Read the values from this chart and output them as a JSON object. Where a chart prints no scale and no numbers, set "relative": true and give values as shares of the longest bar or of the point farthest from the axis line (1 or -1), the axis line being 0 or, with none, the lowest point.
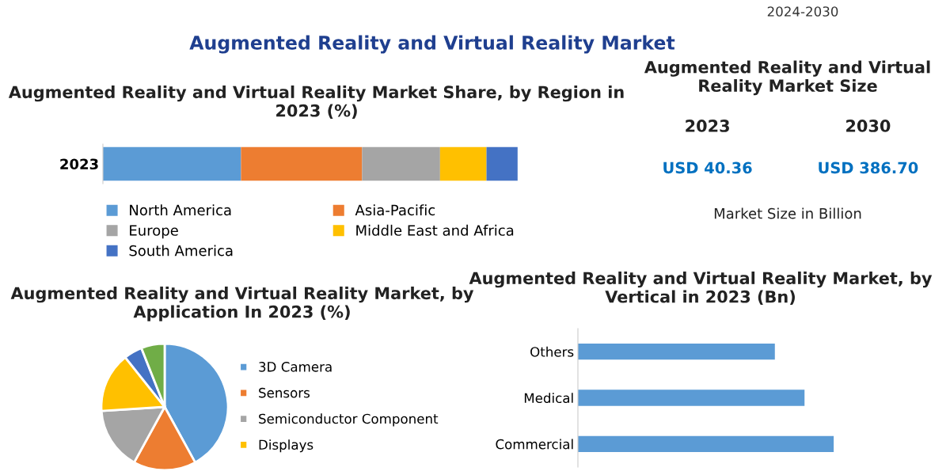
{
  "chart_data": [
    {
      "type": "other",
      "title": "Augmented Reality and Virtual Reality Market",
      "annotations": [
        "2024-2030"
      ]
    },
    {
      "type": "bar",
      "title": "Augmented Reality and Virtual Reality Market Share, by Region in 2023 (%)",
      "orientation": "horizontal",
      "stacked": true,
      "relative": true,
      "categories": [
        "2023"
      ],
      "legend": "bottom",
      "series": [
        {
          "name": "North America",
          "color": "#5b9bd5",
          "values": [
            0.333
          ]
        },
        {
          "name": "Asia-Pacific",
          "color": "#ed7d31",
          "values": [
            0.292
          ]
        },
        {
          "name": "Europe",
          "color": "#a5a5a5",
          "values": [
            0.188
          ]
        },
        {
          "name": "Middle East and Africa",
          "color": "#ffc000",
          "values": [
            0.112
          ]
        },
        {
          "name": "South America",
          "color": "#4472c4",
          "values": [
            0.075
          ]
        }
      ]
    },
    {
      "type": "other",
      "title": "Augmented Reality and Virtual Reality Market Size",
      "annotations": [
        "2023",
        "2030",
        "USD 40.36",
        "USD 386.70",
        "Market Size in Billion"
      ]
    },
    {
      "type": "pie",
      "title": "Augmented Reality and Virtual Reality Market, by Application In 2023 (%)",
      "categories": [
        "3D Camera",
        "Sensors",
        "Semiconductor Component",
        "Displays",
        null,
        null
      ],
      "values": [
        42,
        16,
        16,
        15.3,
        4.7,
        6
      ],
      "colors": [
        "#5b9bd5",
        "#ed7d31",
        "#a5a5a5",
        "#ffc000",
        "#4472c4",
        "#70ad47"
      ],
      "legend": "right"
    },
    {
      "type": "bar",
      "title": "Augmented Reality and Virtual Reality Market, by Vertical in 2023 (Bn)",
      "orientation": "horizontal",
      "relative": true,
      "categories": [
        "Others",
        "Medical",
        "Commercial"
      ],
      "values": [
        0.77,
        0.886,
        1
      ],
      "color": "#5b9bd5"
    }
  ]
}
